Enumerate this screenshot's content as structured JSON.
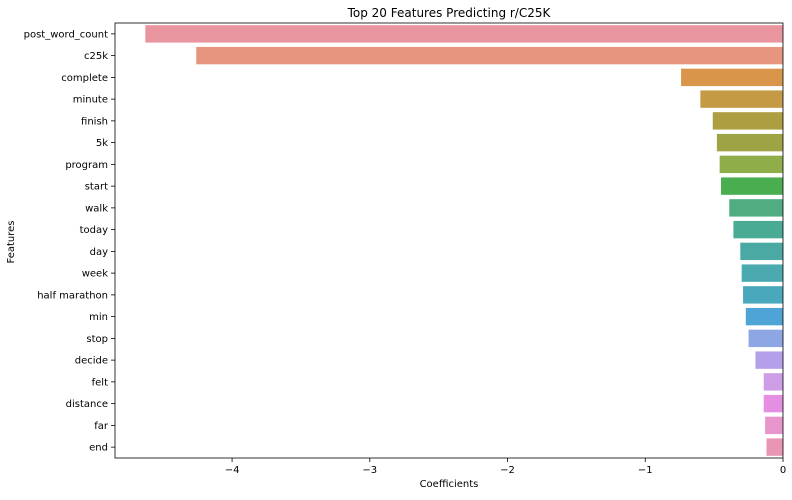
{
  "chart_data": {
    "type": "bar",
    "orientation": "horizontal",
    "title": "Top 20 Features Predicting r/C25K",
    "xlabel": "Coefficients",
    "ylabel": "Features",
    "xlim": [
      -4.85,
      0.0
    ],
    "xticks": [
      -4,
      -3,
      -2,
      -1,
      0
    ],
    "xtick_labels": [
      "−4",
      "−3",
      "−2",
      "−1",
      "0"
    ],
    "grid": false,
    "categories": [
      "post_word_count",
      "c25k",
      "complete",
      "minute",
      "finish",
      "5k",
      "program",
      "start",
      "walk",
      "today",
      "day",
      "week",
      "half marathon",
      "min",
      "stop",
      "decide",
      "felt",
      "distance",
      "far",
      "end"
    ],
    "values": [
      -4.63,
      -4.26,
      -0.74,
      -0.6,
      -0.51,
      -0.48,
      -0.46,
      -0.45,
      -0.39,
      -0.36,
      -0.31,
      -0.3,
      -0.29,
      -0.27,
      -0.25,
      -0.2,
      -0.14,
      -0.14,
      -0.13,
      -0.12
    ],
    "colors": [
      "#e8959f",
      "#e89580",
      "#d9954a",
      "#c49a45",
      "#ad9e42",
      "#9ea346",
      "#8fae4a",
      "#4aae50",
      "#4fad81",
      "#4aab94",
      "#4aaaa3",
      "#4aaab0",
      "#4aa8bc",
      "#4ea4d6",
      "#8da6e4",
      "#b4a0ea",
      "#cd9ee6",
      "#e48fe2",
      "#e895cc",
      "#e896b4"
    ]
  }
}
